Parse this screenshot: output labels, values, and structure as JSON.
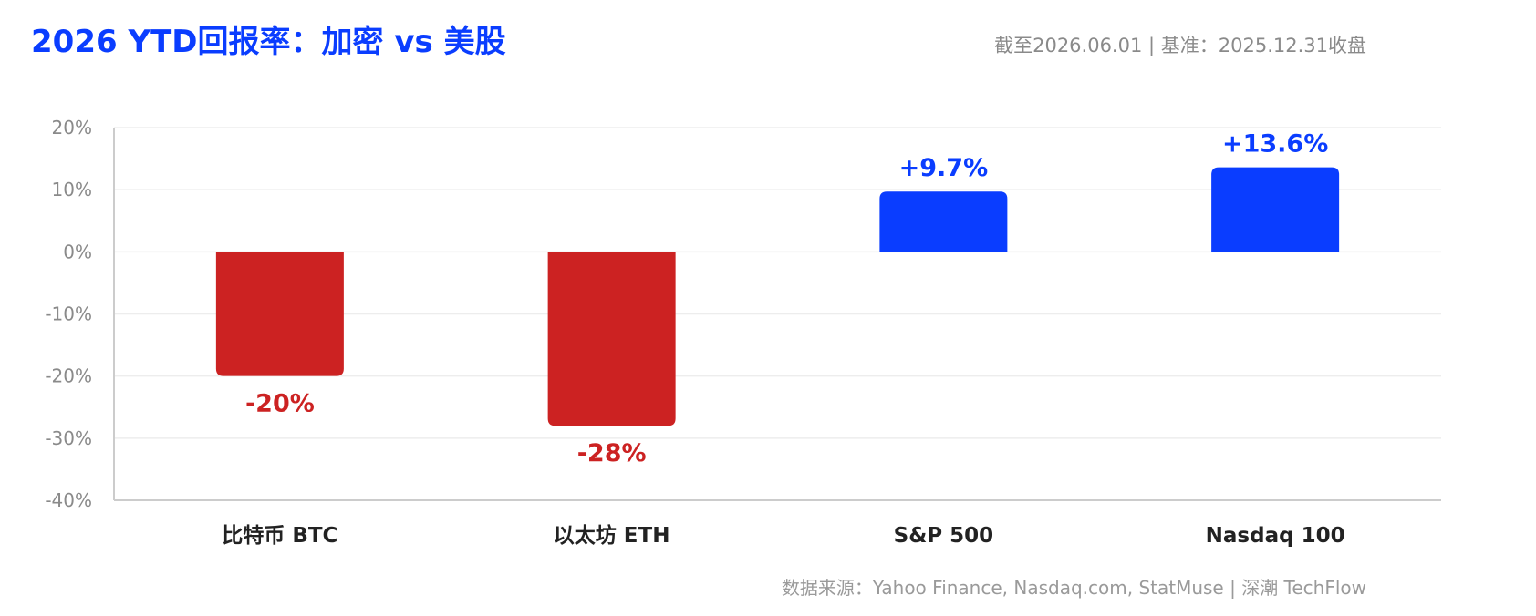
{
  "header": {
    "title": "2026 YTD回报率：加密 vs 美股",
    "meta": "截至2026.06.01 | 基准：2025.12.31收盘"
  },
  "footer": {
    "source": "数据来源：Yahoo Finance, Nasdaq.com, StatMuse | 深潮 TechFlow"
  },
  "colors": {
    "negative": "#CC2222",
    "positive": "#0A3DFF",
    "grid": "#EDEDED",
    "axis": "#CCCCCC",
    "tick_text": "#8A8A8A",
    "category_text": "#222222"
  },
  "chart_data": {
    "type": "bar",
    "categories": [
      "比特币 BTC",
      "以太坊 ETH",
      "S&P 500",
      "Nasdaq 100"
    ],
    "values": [
      -20,
      -28,
      9.7,
      13.6
    ],
    "data_labels": [
      "-20%",
      "-28%",
      "+9.7%",
      "+13.6%"
    ],
    "yticks": [
      20,
      10,
      0,
      -10,
      -20,
      -30,
      -40
    ],
    "ytick_labels": [
      "20%",
      "10%",
      "0%",
      "-10%",
      "-20%",
      "-30%",
      "-40%"
    ],
    "ylim": [
      -40,
      20
    ],
    "grid": true,
    "title": "",
    "xlabel": "",
    "ylabel": ""
  }
}
